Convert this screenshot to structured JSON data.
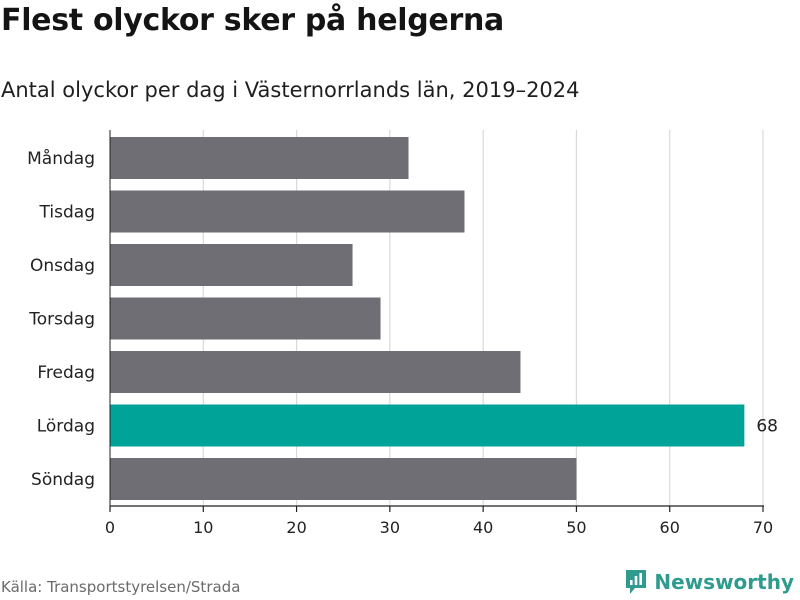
{
  "header": {
    "title": "Flest olyckor sker på helgerna",
    "subtitle": "Antal olyckor per dag i Västernorrlands län, 2019–2024"
  },
  "footer": {
    "source": "Källa: Transportstyrelsen/Strada",
    "brand": "Newsworthy",
    "brand_icon": "newsworthy-logo-icon"
  },
  "colors": {
    "bar": "#6f6e74",
    "highlight": "#00a397",
    "grid": "#d9d9d9",
    "axis": "#222222",
    "text": "#222222",
    "brand": "#2f9b8f"
  },
  "chart_data": {
    "type": "bar",
    "orientation": "horizontal",
    "categories": [
      "Måndag",
      "Tisdag",
      "Onsdag",
      "Torsdag",
      "Fredag",
      "Lördag",
      "Söndag"
    ],
    "values": [
      32,
      38,
      26,
      29,
      44,
      68,
      50
    ],
    "highlight_index": 5,
    "data_labels": [
      "",
      "",
      "",
      "",
      "",
      "68",
      ""
    ],
    "xlim": [
      0,
      70
    ],
    "xticks": [
      0,
      10,
      20,
      30,
      40,
      50,
      60,
      70
    ],
    "grid": true,
    "xlabel": "",
    "ylabel": ""
  }
}
